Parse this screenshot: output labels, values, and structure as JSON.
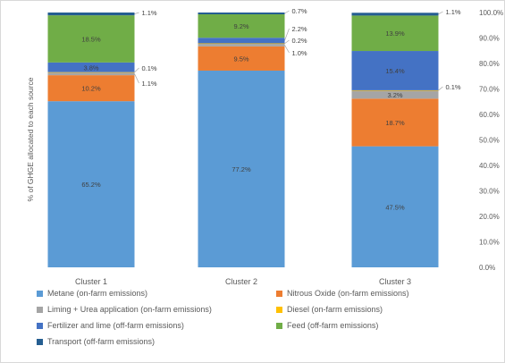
{
  "chart_data": {
    "type": "bar",
    "stacked": true,
    "categories": [
      "Cluster 1",
      "Cluster 2",
      "Cluster 3"
    ],
    "ylabel": "% of GHGE allocated to each source",
    "ylim": [
      0,
      100
    ],
    "y_axis_position": "right",
    "y_ticks": [
      "0.0%",
      "10.0%",
      "20.0%",
      "30.0%",
      "40.0%",
      "50.0%",
      "60.0%",
      "70.0%",
      "80.0%",
      "90.0%",
      "100.0%"
    ],
    "legend_position": "bottom",
    "series": [
      {
        "name": "Metane (on-farm emissions)",
        "color": "#5b9bd5",
        "values": [
          65.2,
          77.2,
          47.5
        ],
        "labels": [
          "65.2%",
          "77.2%",
          "47.5%"
        ]
      },
      {
        "name": "Nitrous Oxide (on-farm emissions)",
        "color": "#ed7d31",
        "values": [
          10.2,
          9.5,
          18.7
        ],
        "labels": [
          "10.2%",
          "9.5%",
          "18.7%"
        ]
      },
      {
        "name": "Liming  + Urea application (on-farm emissions)",
        "color": "#a5a5a5",
        "values": [
          1.1,
          1.0,
          3.2
        ],
        "labels": [
          "1.1%",
          "1.0%",
          "3.2%"
        ]
      },
      {
        "name": "Diesel (on-farm emissions)",
        "color": "#ffc000",
        "values": [
          0.1,
          0.2,
          0.1
        ],
        "labels": [
          "0.1%",
          "0.2%",
          "0.1%"
        ]
      },
      {
        "name": "Fertilizer and lime (off-farm emissions)",
        "color": "#4472c4",
        "values": [
          3.8,
          2.2,
          15.4
        ],
        "labels": [
          "3.8%",
          "2.2%",
          "15.4%"
        ]
      },
      {
        "name": "Feed (off-farm emissions)",
        "color": "#70ad47",
        "values": [
          18.5,
          9.2,
          13.9
        ],
        "labels": [
          "18.5%",
          "9.2%",
          "13.9%"
        ]
      },
      {
        "name": "Transport (off-farm emissions)",
        "color": "#255e91",
        "values": [
          1.1,
          0.7,
          1.1
        ],
        "labels": [
          "1.1%",
          "0.7%",
          "1.1%"
        ]
      }
    ]
  }
}
